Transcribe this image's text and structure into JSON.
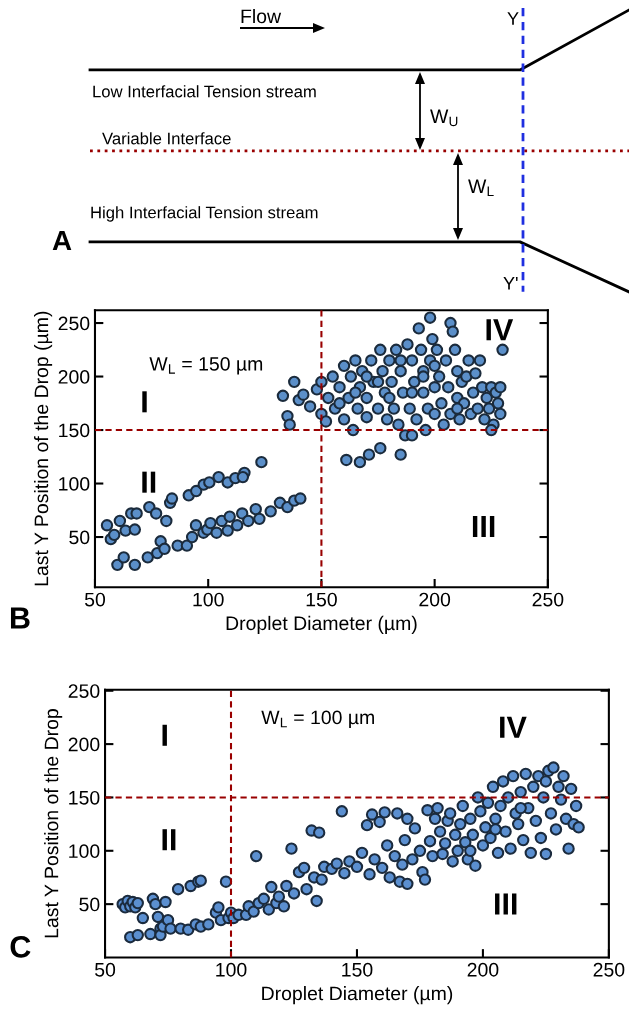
{
  "chart_data": [
    {
      "type": "other",
      "annotations": [
        "Flow",
        "Low Interfacial Tension stream",
        "Variable Interface",
        "High Interfacial Tension stream",
        "W$_{U}$",
        "W$_{L}$",
        "Y",
        "Y'",
        "A"
      ]
    },
    {
      "type": "scatter",
      "xlabel": "Droplet Diameter (µm)",
      "ylabel": "Last Y Position of the Drop (µm)",
      "xlim": [
        50,
        250
      ],
      "ylim": [
        3,
        262
      ],
      "xticks": [
        50,
        100,
        150,
        200,
        250
      ],
      "yticks": [
        50,
        100,
        150,
        200,
        250
      ],
      "grid": false,
      "legend": false,
      "marker": "circle",
      "annotations": [
        "W$_{L}$ = 150 µm",
        "I",
        "II",
        "III",
        "IV",
        "B"
      ],
      "ref_lines": [
        {
          "axis": "x",
          "value": 150,
          "color": "#990000",
          "line_style": "dashed"
        },
        {
          "axis": "y",
          "value": 150,
          "color": "#990000",
          "line_style": "dashed"
        }
      ],
      "series": [
        {
          "color": "#5b8fc9",
          "x": [
            59.9,
            62.7,
            67.6,
            73.3,
            77.5,
            79,
            80.7,
            86.5,
            90.6,
            92.9,
            94.6,
            97.9,
            99.6,
            101,
            103.7,
            106,
            108.6,
            109.5,
            112.8,
            115,
            117.7,
            121,
            122.6,
            127.6,
            131.7,
            135,
            138,
            140.7,
            55.3,
            57,
            58.5,
            61,
            63.5,
            66,
            67.6,
            68.4,
            74,
            77,
            81.5,
            83.2,
            84,
            91.4,
            94.7,
            98,
            100.5,
            104.6,
            108.6,
            112,
            116,
            115.3,
            123.5,
            133,
            135,
            136,
            138,
            140,
            142,
            145,
            148,
            150,
            150,
            152,
            153,
            155,
            156,
            158,
            160,
            160,
            161,
            162,
            163,
            164,
            165,
            166,
            167,
            167,
            168,
            170,
            170,
            171,
            172,
            173,
            175,
            176,
            176,
            177,
            178,
            179,
            180,
            181,
            182,
            183,
            184,
            185,
            185,
            186,
            187,
            188,
            189,
            190,
            190,
            191,
            192,
            193,
            194,
            195,
            195,
            196,
            197,
            198,
            198,
            199,
            200,
            200,
            201,
            202,
            203,
            204,
            205,
            206,
            207,
            207,
            208,
            209,
            210,
            210,
            211,
            212,
            213,
            214,
            215,
            216,
            217,
            218,
            219,
            220,
            221,
            222,
            223,
            224,
            225,
            226,
            227,
            228,
            229,
            230,
            229,
            225,
            195,
            185,
            175,
            165,
            158,
            170,
            180,
            190,
            200,
            210
          ],
          "values": [
            24,
            31,
            24,
            31,
            35,
            46,
            39,
            42,
            42,
            50,
            61,
            54,
            57,
            63,
            54,
            65,
            56,
            69,
            61,
            72,
            65,
            76,
            67,
            74,
            82,
            78,
            84,
            86,
            61,
            48,
            52,
            65,
            56,
            72,
            57,
            72,
            78,
            72,
            65,
            82,
            86,
            89,
            93,
            99,
            101,
            106,
            101,
            105,
            110,
            106,
            120,
            182,
            163,
            155,
            195,
            178,
            183,
            172,
            188,
            195,
            165,
            158,
            180,
            200,
            170,
            190,
            210,
            160,
            122,
            180,
            200,
            150,
            215,
            170,
            190,
            120,
            205,
            162,
            180,
            127,
            215,
            195,
            170,
            225,
            133,
            205,
            185,
            160,
            215,
            195,
            170,
            225,
            155,
            205,
            127,
            185,
            145,
            230,
            170,
            215,
            145,
            195,
            160,
            245,
            225,
            205,
            185,
            150,
            170,
            255,
            215,
            235,
            190,
            165,
            225,
            200,
            175,
            155,
            215,
            190,
            250,
            165,
            242,
            225,
            205,
            180,
            160,
            195,
            175,
            200,
            215,
            165,
            185,
            203,
            170,
            215,
            190,
            160,
            180,
            170,
            190,
            155,
            185,
            175,
            165,
            225,
            190,
            150,
            200,
            215,
            195,
            185,
            175,
            200,
            180,
            185,
            210,
            170
          ]
        }
      ]
    },
    {
      "type": "scatter",
      "xlabel": "Droplet Diameter (µm)",
      "ylabel": "Last Y Position of the Drop",
      "xlim": [
        50,
        250
      ],
      "ylim": [
        0,
        251
      ],
      "xticks": [
        50,
        100,
        150,
        200,
        250
      ],
      "yticks": [
        50,
        100,
        150,
        200,
        250
      ],
      "grid": false,
      "legend": false,
      "marker": "circle",
      "annotations": [
        "W$_{L}$ = 100 µm",
        "I",
        "II",
        "III",
        "IV",
        "C"
      ],
      "ref_lines": [
        {
          "axis": "x",
          "value": 100,
          "color": "#990000",
          "line_style": "dashed"
        },
        {
          "axis": "y",
          "value": 150,
          "color": "#990000",
          "line_style": "dashed"
        }
      ],
      "series": [
        {
          "color": "#5b8fd0",
          "x": [
            57,
            58,
            59,
            60,
            61,
            62,
            63,
            60,
            63,
            65,
            68,
            69,
            70,
            71,
            72,
            72,
            73,
            74,
            75,
            76,
            79,
            80,
            83,
            84,
            86,
            87,
            88,
            88,
            91,
            94,
            95,
            96,
            98,
            99,
            100,
            101,
            103,
            106,
            107,
            109,
            110,
            111,
            113,
            115,
            116,
            118,
            119,
            121,
            122,
            124,
            125,
            127,
            129,
            130,
            132,
            133,
            134,
            135,
            136,
            137,
            140,
            142,
            144,
            145,
            147,
            150,
            152,
            154,
            155,
            156,
            157,
            159,
            160,
            161,
            162,
            163,
            165,
            166,
            167,
            168,
            169,
            170,
            170,
            172,
            173,
            175,
            176,
            177,
            178,
            179,
            180,
            181,
            182,
            183,
            184,
            185,
            186,
            187,
            188,
            189,
            190,
            191,
            192,
            193,
            194,
            195,
            196,
            197,
            198,
            199,
            200,
            201,
            202,
            203,
            204,
            205,
            206,
            207,
            208,
            209,
            210,
            211,
            212,
            213,
            214,
            215,
            216,
            217,
            218,
            219,
            220,
            221,
            222,
            223,
            224,
            225,
            226,
            227,
            228,
            229,
            230,
            231,
            232,
            233,
            234,
            235,
            236,
            237,
            238,
            225,
            215,
            205,
            195
          ],
          "values": [
            50,
            47,
            53,
            48,
            52,
            47,
            51,
            19,
            21,
            37,
            22,
            55,
            50,
            38,
            27,
            21,
            29,
            52,
            35,
            27,
            64,
            27,
            26,
            67,
            31,
            71,
            72,
            29,
            31,
            42,
            47,
            35,
            71,
            37,
            42,
            37,
            40,
            40,
            48,
            43,
            95,
            51,
            55,
            45,
            66,
            51,
            57,
            48,
            67,
            102,
            60,
            80,
            84,
            64,
            119,
            75,
            53,
            117,
            73,
            85,
            83,
            88,
            137,
            79,
            90,
            85,
            98,
            124,
            78,
            134,
            92,
            127,
            84,
            136,
            105,
            75,
            95,
            135,
            71,
            87,
            110,
            130,
            69,
            92,
            121,
            100,
            80,
            73,
            138,
            109,
            95,
            130,
            140,
            118,
            97,
            107,
            128,
            135,
            90,
            115,
            100,
            125,
            142,
            108,
            92,
            130,
            115,
            86,
            150,
            137,
            105,
            122,
            145,
            112,
            160,
            130,
            98,
            142,
            165,
            118,
            150,
            102,
            170,
            135,
            125,
            155,
            110,
            172,
            140,
            98,
            160,
            128,
            170,
            112,
            150,
            97,
            175,
            135,
            178,
            120,
            160,
            148,
            170,
            130,
            102,
            158,
            125,
            142,
            122,
            165,
            140,
            120,
            100
          ]
        }
      ]
    }
  ]
}
